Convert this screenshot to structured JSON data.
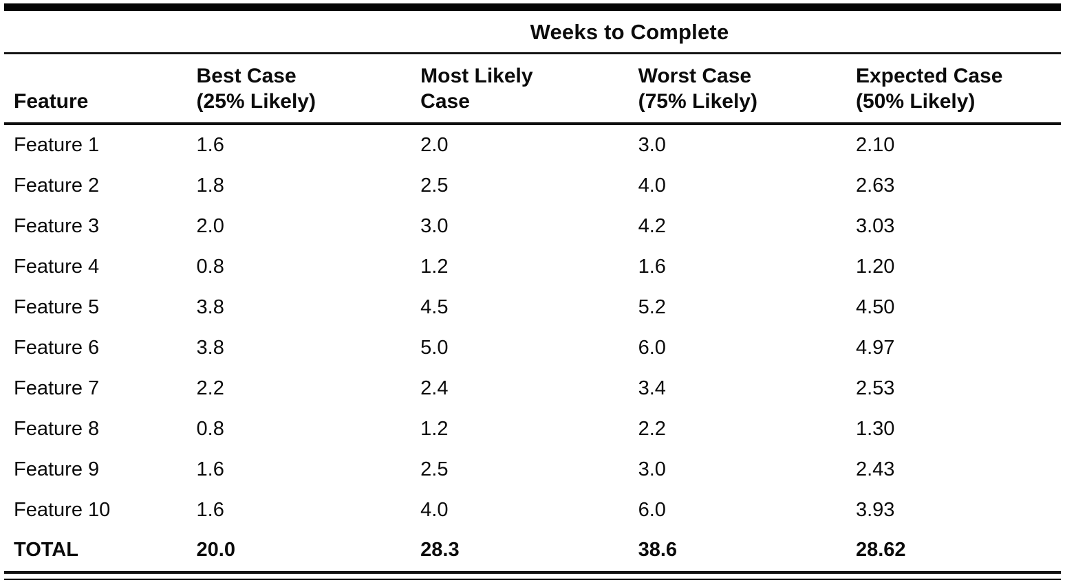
{
  "table": {
    "title": "Weeks to Complete",
    "feature_header": "Feature",
    "column_headers": [
      {
        "line1": "Best Case",
        "line2": "(25% Likely)"
      },
      {
        "line1": "Most Likely",
        "line2": "Case"
      },
      {
        "line1": "Worst Case",
        "line2": "(75% Likely)"
      },
      {
        "line1": "Expected Case",
        "line2": "(50% Likely)"
      }
    ],
    "rows": [
      {
        "feature": "Feature 1",
        "values": [
          "1.6",
          "2.0",
          "3.0",
          "2.10"
        ]
      },
      {
        "feature": "Feature 2",
        "values": [
          "1.8",
          "2.5",
          "4.0",
          "2.63"
        ]
      },
      {
        "feature": "Feature 3",
        "values": [
          "2.0",
          "3.0",
          "4.2",
          "3.03"
        ]
      },
      {
        "feature": "Feature 4",
        "values": [
          "0.8",
          "1.2",
          "1.6",
          "1.20"
        ]
      },
      {
        "feature": "Feature 5",
        "values": [
          "3.8",
          "4.5",
          "5.2",
          "4.50"
        ]
      },
      {
        "feature": "Feature 6",
        "values": [
          "3.8",
          "5.0",
          "6.0",
          "4.97"
        ]
      },
      {
        "feature": "Feature 7",
        "values": [
          "2.2",
          "2.4",
          "3.4",
          "2.53"
        ]
      },
      {
        "feature": "Feature 8",
        "values": [
          "0.8",
          "1.2",
          "2.2",
          "1.30"
        ]
      },
      {
        "feature": "Feature 9",
        "values": [
          "1.6",
          "2.5",
          "3.0",
          "2.43"
        ]
      },
      {
        "feature": "Feature 10",
        "values": [
          "1.6",
          "4.0",
          "6.0",
          "3.93"
        ]
      }
    ],
    "total": {
      "feature": "TOTAL",
      "values": [
        "20.0",
        "28.3",
        "38.6",
        "28.62"
      ]
    }
  }
}
